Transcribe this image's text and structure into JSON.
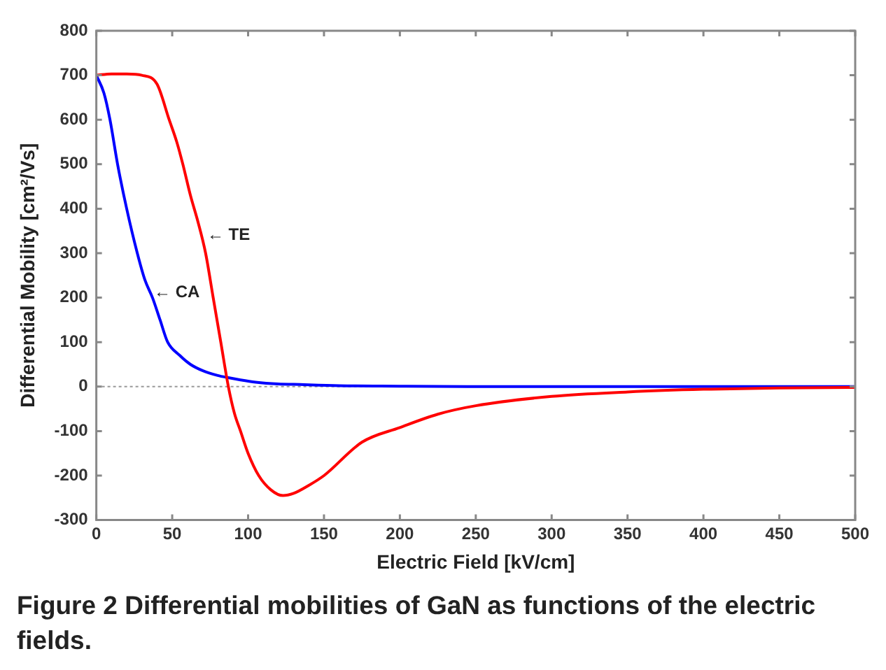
{
  "chart_data": {
    "type": "line",
    "xlabel": "Electric Field [kV/cm]",
    "ylabel": "Differential Mobility [cm²/Vs]",
    "xlim": [
      0,
      500
    ],
    "xticks": [
      0,
      50,
      100,
      150,
      200,
      250,
      300,
      350,
      400,
      450,
      500
    ],
    "ylim": [
      -300,
      800
    ],
    "yticks": [
      -300,
      -200,
      -100,
      0,
      100,
      200,
      300,
      400,
      500,
      600,
      700,
      800
    ],
    "grid": false,
    "legend": false,
    "marker": "none",
    "line_style": "solid",
    "series": [
      {
        "color": "#ff0000",
        "x": [
          0,
          10,
          20,
          30,
          40,
          48,
          53,
          57,
          62,
          67,
          72,
          77,
          82,
          87,
          91,
          95,
          100,
          107,
          115,
          123,
          130,
          140,
          150,
          175,
          200,
          225,
          250,
          300,
          350,
          400,
          450,
          500
        ],
        "values": [
          700,
          703,
          703,
          700,
          680,
          600,
          550,
          500,
          430,
          370,
          300,
          200,
          100,
          0,
          -60,
          -100,
          -150,
          -200,
          -232,
          -245,
          -240,
          -222,
          -200,
          -125,
          -92,
          -62,
          -43,
          -22,
          -12,
          -6,
          -3,
          -2
        ]
      },
      {
        "color": "#0000ff",
        "x": [
          0,
          5,
          9,
          14,
          20,
          27,
          32,
          37,
          42,
          47,
          55,
          62,
          70,
          80,
          87,
          95,
          105,
          120,
          130,
          160,
          200,
          250,
          300,
          400,
          500
        ],
        "values": [
          700,
          660,
          600,
          500,
          400,
          300,
          240,
          200,
          150,
          100,
          70,
          50,
          36,
          25,
          20,
          15,
          10,
          6,
          5,
          2,
          1,
          0,
          0,
          0,
          0
        ]
      }
    ],
    "ref_lines": [
      {
        "axis": "y",
        "value": 0,
        "color": "#999999",
        "line_style": "dotted"
      }
    ],
    "annotations": [
      {
        "text": "← TE",
        "x": 73,
        "y": 340
      },
      {
        "text": "← CA",
        "x": 38,
        "y": 212
      },
      "Figure 2 Differential mobilities of GaN as functions of the electric fields."
    ]
  }
}
